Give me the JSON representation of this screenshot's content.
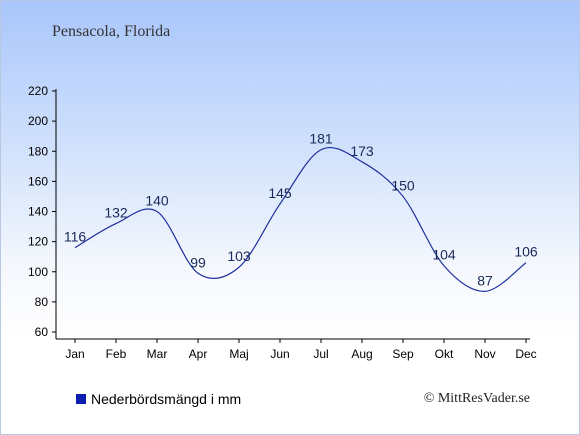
{
  "chart_data": {
    "type": "line",
    "title": "Pensacola, Florida",
    "categories": [
      "Jan",
      "Feb",
      "Mar",
      "Apr",
      "Maj",
      "Jun",
      "Jul",
      "Aug",
      "Sep",
      "Okt",
      "Nov",
      "Dec"
    ],
    "series": [
      {
        "name": "Nederbördsmängd i mm",
        "values": [
          116,
          132,
          140,
          99,
          103,
          145,
          181,
          173,
          150,
          104,
          87,
          106
        ]
      }
    ],
    "data_labels": [
      "116",
      "132",
      "140",
      "99",
      "103",
      "145",
      "181",
      "173",
      "150",
      "104",
      "87",
      "106"
    ],
    "ylim": [
      60,
      220
    ],
    "yticks": [
      60,
      80,
      100,
      120,
      140,
      160,
      180,
      200,
      220
    ],
    "ytick_labels": [
      "60",
      "80",
      "100",
      "120",
      "140",
      "160",
      "180",
      "200",
      "220"
    ],
    "grid": false,
    "legend_position": "bottom-left",
    "line_color": "#1f2f9e",
    "legend_color": "#0d1fb0"
  },
  "legend": {
    "label": "Nederbördsmängd i mm"
  },
  "credit": {
    "text": "© MittResVader.se"
  }
}
